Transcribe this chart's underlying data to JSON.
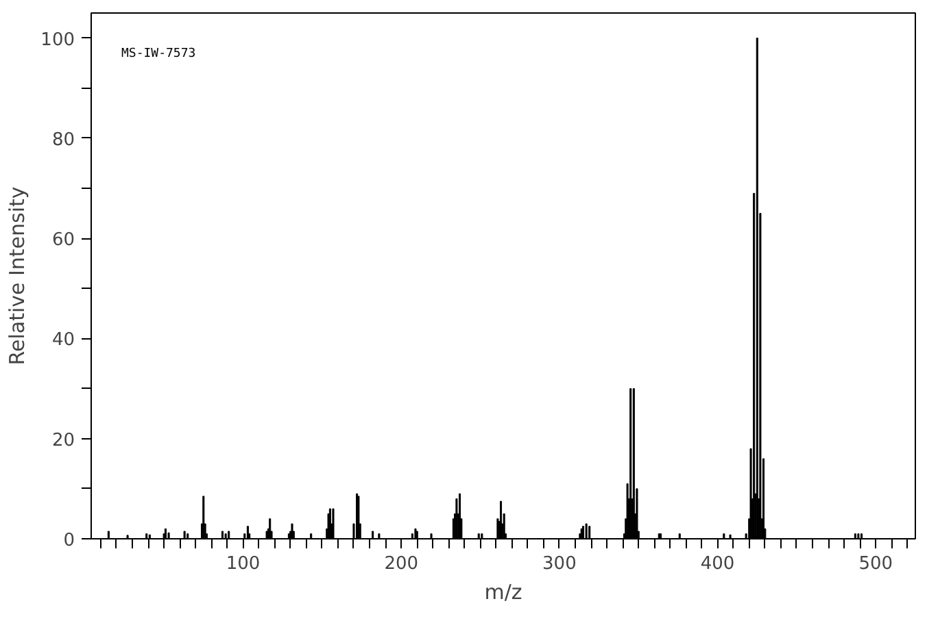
{
  "chart_data": {
    "type": "bar",
    "xlabel": "m/z",
    "ylabel": "Relative Intensity",
    "annotations": [
      "MS-IW-7573"
    ],
    "x": [
      15,
      27,
      39,
      41,
      50,
      51,
      53,
      63,
      65,
      74,
      75,
      76,
      77,
      87,
      89,
      91,
      101,
      103,
      104,
      115,
      116,
      117,
      118,
      129,
      130,
      131,
      132,
      143,
      153,
      154,
      155,
      156,
      157,
      170,
      172,
      173,
      174,
      182,
      186,
      207,
      209,
      210,
      219,
      233,
      234,
      235,
      236,
      237,
      238,
      249,
      251,
      261,
      262,
      263,
      264,
      265,
      266,
      313,
      314,
      315,
      317,
      319,
      341,
      342,
      343,
      344,
      345,
      346,
      347,
      348,
      349,
      350,
      363,
      364,
      376,
      404,
      408,
      418,
      420,
      421,
      422,
      423,
      424,
      425,
      426,
      427,
      428,
      429,
      430,
      487,
      489,
      491
    ],
    "series": [
      {
        "color": "#000000",
        "values": [
          1.5,
          0.7,
          1,
          0.8,
          1,
          2,
          1.2,
          1.5,
          1,
          3,
          8.5,
          3,
          1,
          1.5,
          1,
          1.5,
          1,
          2.5,
          1,
          1.5,
          2,
          4,
          1.5,
          1,
          1.5,
          3,
          1.5,
          1,
          2,
          5,
          6,
          3,
          6,
          3,
          9,
          8.5,
          3,
          1.5,
          1,
          1,
          2,
          1.5,
          1,
          4,
          5,
          8,
          5,
          9,
          4,
          1,
          1,
          4,
          3.5,
          7.5,
          3,
          5,
          1,
          1,
          2,
          2.5,
          3,
          2.5,
          1,
          4,
          11,
          8,
          30,
          8,
          30,
          5,
          10,
          1.5,
          1,
          1,
          1,
          1,
          0.8,
          1,
          4,
          18,
          8,
          69,
          9,
          100,
          8,
          65,
          4,
          16,
          2,
          1,
          1,
          1
        ]
      }
    ],
    "xlim": [
      4,
      525
    ],
    "ylim": [
      0,
      105
    ],
    "xticks": [
      {
        "value": 10,
        "label": null
      },
      {
        "value": 20,
        "label": null
      },
      {
        "value": 30,
        "label": null
      },
      {
        "value": 40,
        "label": null
      },
      {
        "value": 50,
        "label": null
      },
      {
        "value": 60,
        "label": null
      },
      {
        "value": 70,
        "label": null
      },
      {
        "value": 80,
        "label": null
      },
      {
        "value": 90,
        "label": null
      },
      100,
      {
        "value": 110,
        "label": null
      },
      {
        "value": 120,
        "label": null
      },
      {
        "value": 130,
        "label": null
      },
      {
        "value": 140,
        "label": null
      },
      {
        "value": 150,
        "label": null
      },
      {
        "value": 160,
        "label": null
      },
      {
        "value": 170,
        "label": null
      },
      {
        "value": 180,
        "label": null
      },
      {
        "value": 190,
        "label": null
      },
      200,
      {
        "value": 210,
        "label": null
      },
      {
        "value": 220,
        "label": null
      },
      {
        "value": 230,
        "label": null
      },
      {
        "value": 240,
        "label": null
      },
      {
        "value": 250,
        "label": null
      },
      {
        "value": 260,
        "label": null
      },
      {
        "value": 270,
        "label": null
      },
      {
        "value": 280,
        "label": null
      },
      {
        "value": 290,
        "label": null
      },
      300,
      {
        "value": 310,
        "label": null
      },
      {
        "value": 320,
        "label": null
      },
      {
        "value": 330,
        "label": null
      },
      {
        "value": 340,
        "label": null
      },
      {
        "value": 350,
        "label": null
      },
      {
        "value": 360,
        "label": null
      },
      {
        "value": 370,
        "label": null
      },
      {
        "value": 380,
        "label": null
      },
      {
        "value": 390,
        "label": null
      },
      400,
      {
        "value": 410,
        "label": null
      },
      {
        "value": 420,
        "label": null
      },
      {
        "value": 430,
        "label": null
      },
      {
        "value": 440,
        "label": null
      },
      {
        "value": 450,
        "label": null
      },
      {
        "value": 460,
        "label": null
      },
      {
        "value": 470,
        "label": null
      },
      {
        "value": 480,
        "label": null
      },
      {
        "value": 490,
        "label": null
      },
      500,
      {
        "value": 510,
        "label": null
      },
      {
        "value": 520,
        "label": null
      }
    ],
    "yticks": [
      0,
      {
        "value": 10,
        "label": null
      },
      20,
      {
        "value": 30,
        "label": null
      },
      40,
      {
        "value": 50,
        "label": null
      },
      60,
      {
        "value": 70,
        "label": null
      },
      80,
      {
        "value": 90,
        "label": null
      },
      100
    ]
  }
}
